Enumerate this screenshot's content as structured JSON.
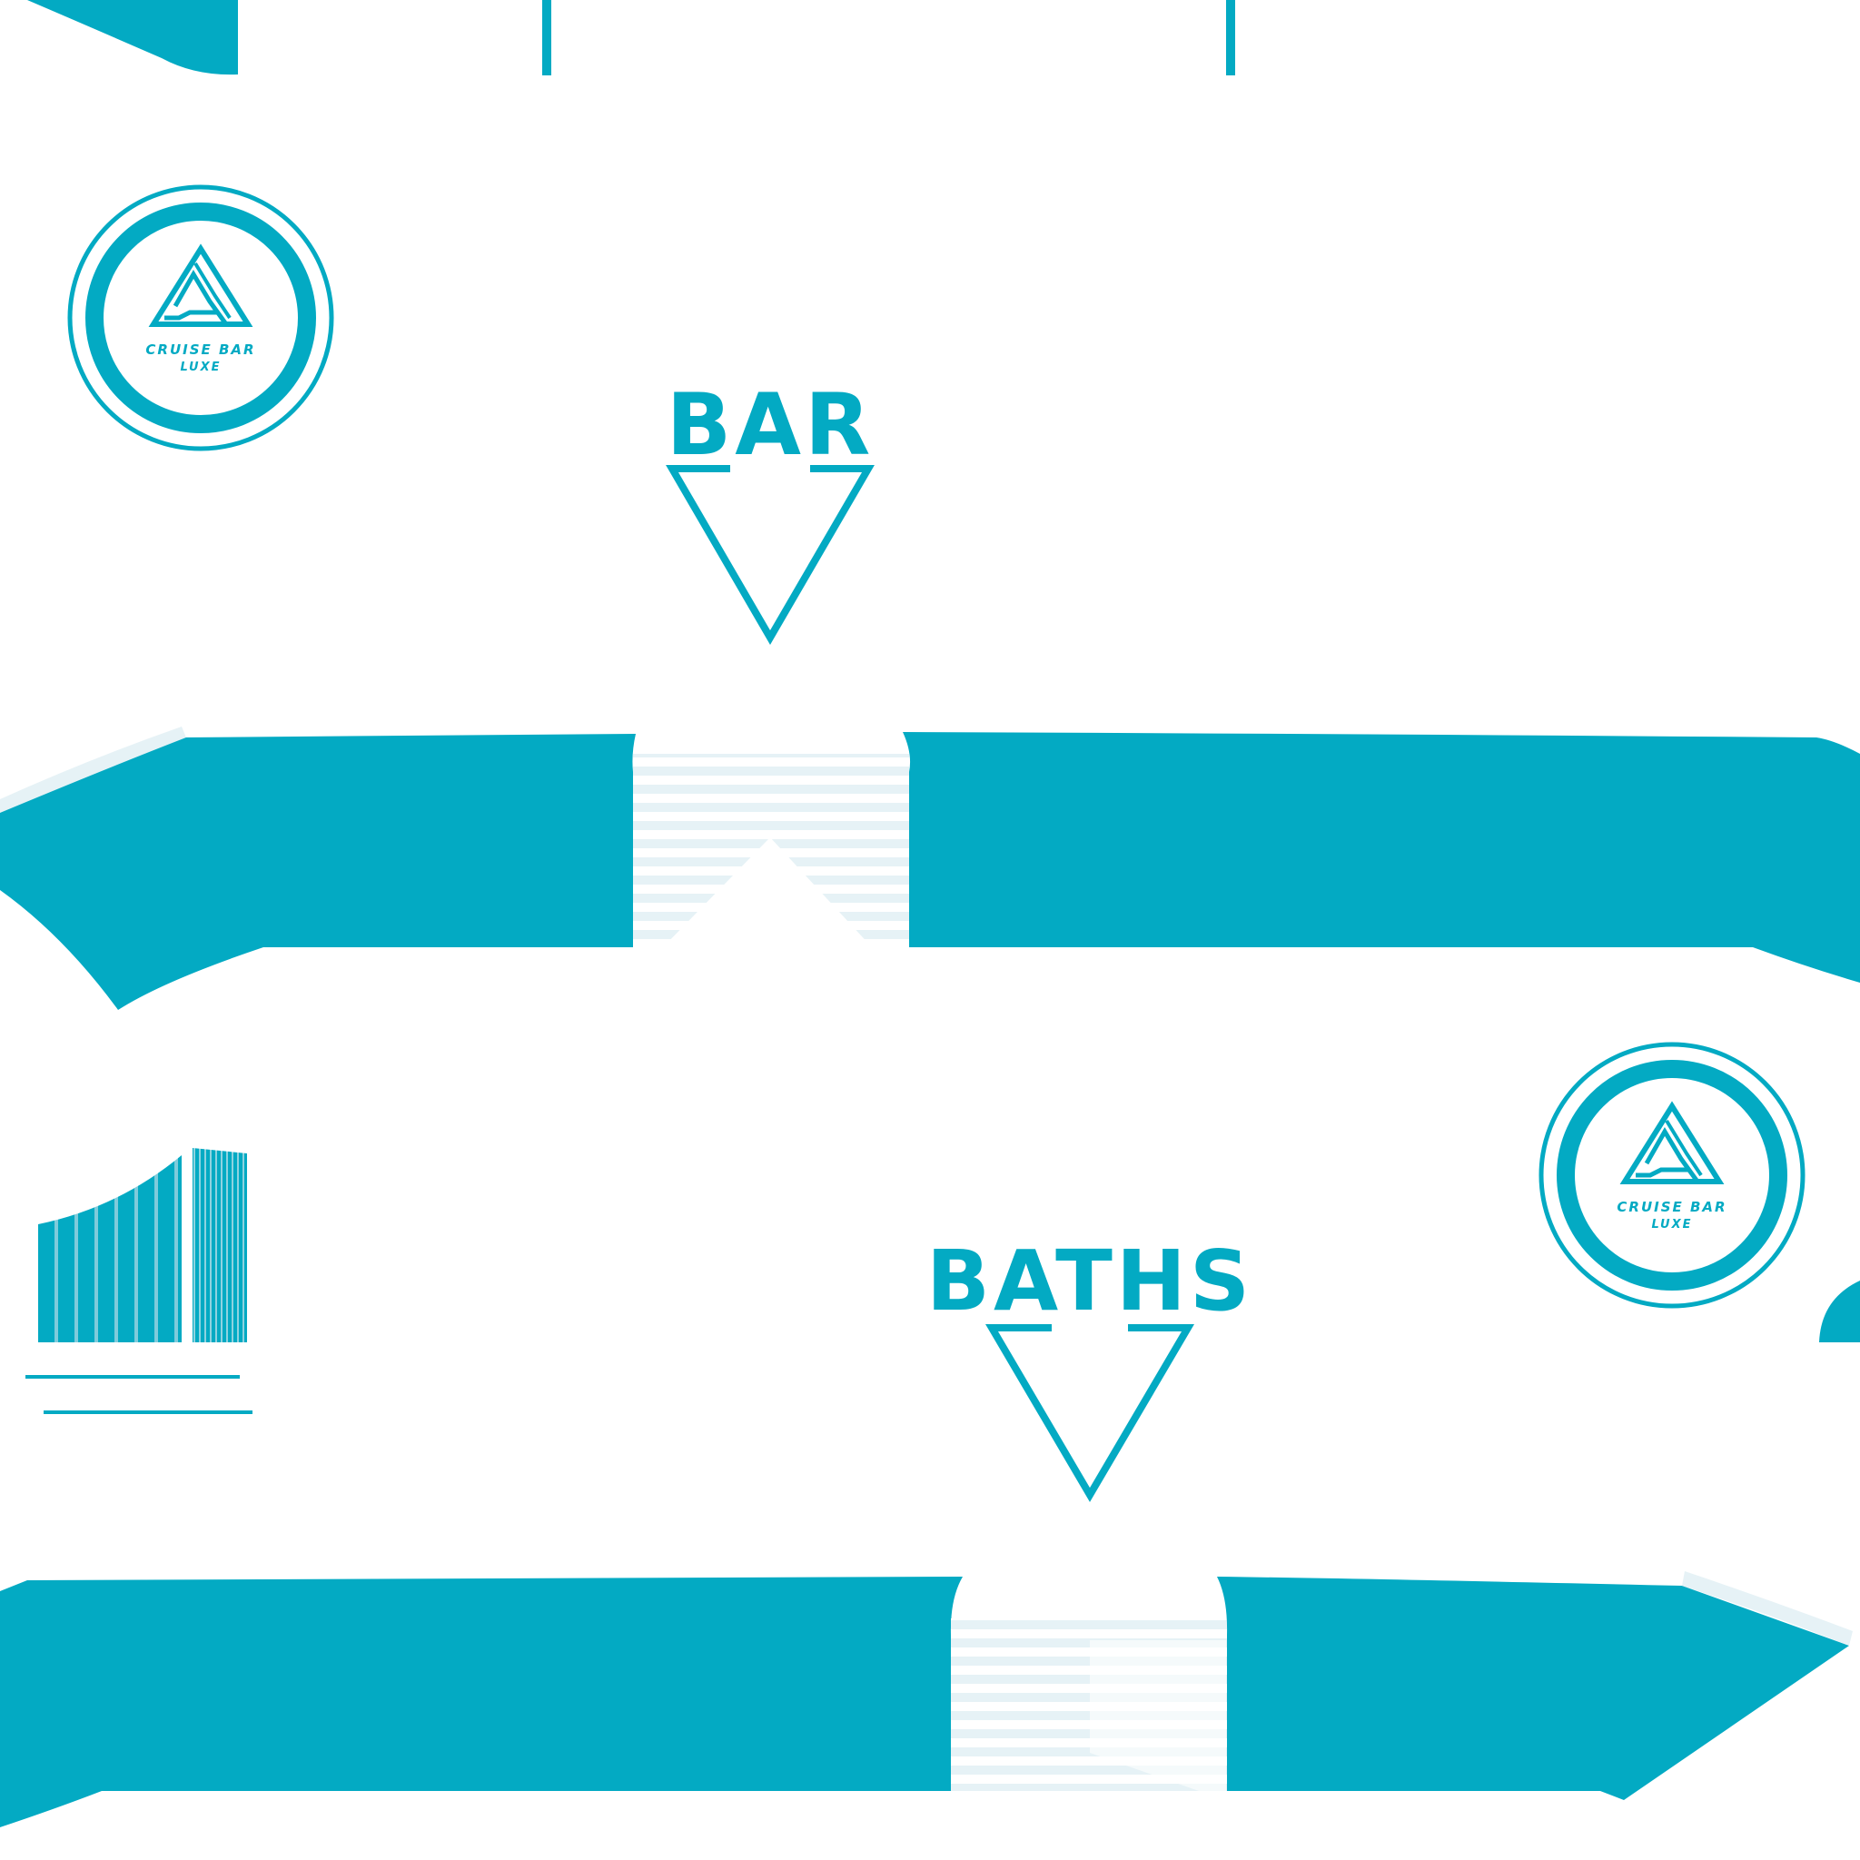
{
  "texture": {
    "colors": {
      "accent": "#03AAC3",
      "light": "#E6F2F6",
      "background": "#FFFFFF"
    },
    "signs": [
      {
        "label": "BAR",
        "icon": "down-arrow-triangle-icon"
      },
      {
        "label": "BATHS",
        "icon": "down-arrow-triangle-icon"
      }
    ],
    "logo": {
      "line1": "CRUISE BAR",
      "line2": "LUXE",
      "icon": "triangle-logo-icon"
    }
  }
}
